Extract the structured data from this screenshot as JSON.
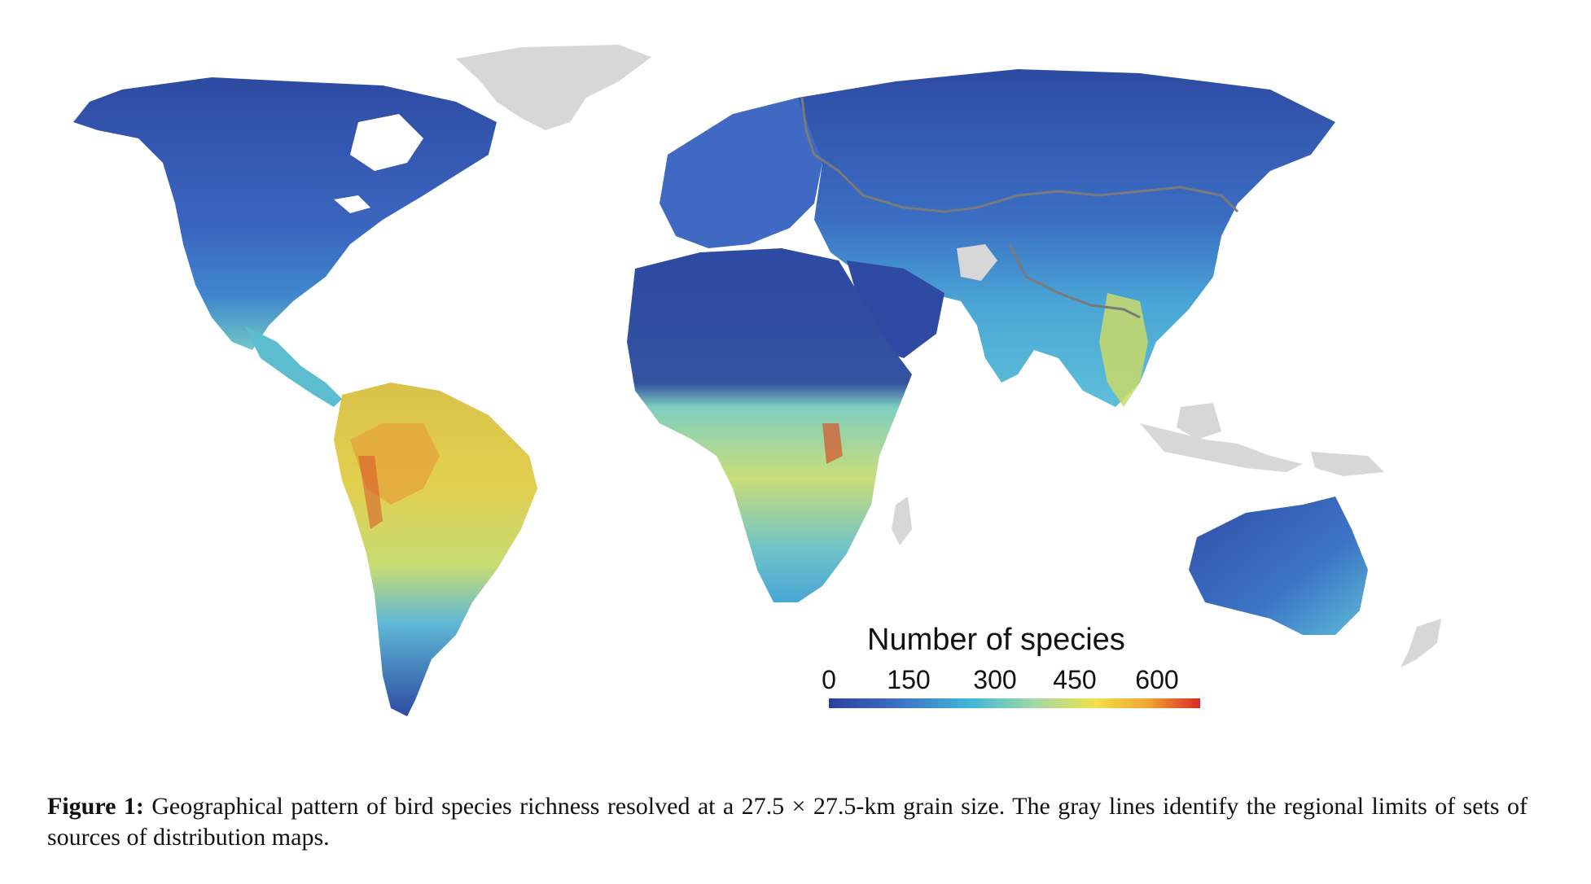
{
  "legend": {
    "title": "Number of species",
    "ticks": [
      "0",
      "150",
      "300",
      "450",
      "600"
    ],
    "colors": [
      "#2e3f9c",
      "#3a6fc4",
      "#41b6d8",
      "#9fd9a6",
      "#f2e148",
      "#f2a232",
      "#d92b22"
    ]
  },
  "caption": {
    "label": "Figure 1:",
    "text": "Geographical pattern of bird species richness resolved at a 27.5 × 27.5-km grain size. The gray lines identify the regional limits of sets of sources of distribution maps."
  },
  "map_colors": {
    "low": "#2e4aa3",
    "mid_low": "#3b7fd0",
    "mid": "#55c0d6",
    "mid_high": "#a8d98f",
    "high": "#e8d54a",
    "very_high": "#d8532a",
    "no_data": "#d7d7d7",
    "border": "#7a7a7a"
  }
}
